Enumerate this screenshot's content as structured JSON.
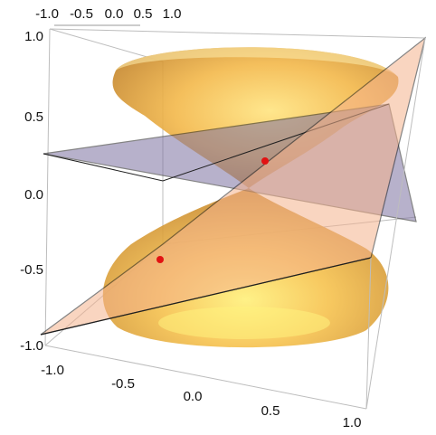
{
  "plot": {
    "axis_top_labels": [
      "-1.0",
      "-0.5",
      "0.0",
      "0.5",
      "1.0"
    ],
    "axis_left_labels": [
      "1.0",
      "0.5",
      "0.0",
      "-0.5",
      "-1.0"
    ],
    "axis_bottom_labels": [
      "-1.0",
      "-0.5",
      "0.0",
      "0.5",
      "1.0"
    ]
  },
  "colors": {
    "cone_fill": "#f0b44a",
    "cone_highlight": "#ffe27a",
    "cone_shadow": "#c9852c",
    "plane_purple": "#8477a4",
    "plane_peach": "#f6b993",
    "point": "#e21212",
    "box_edge": "#b9b9b9"
  }
}
